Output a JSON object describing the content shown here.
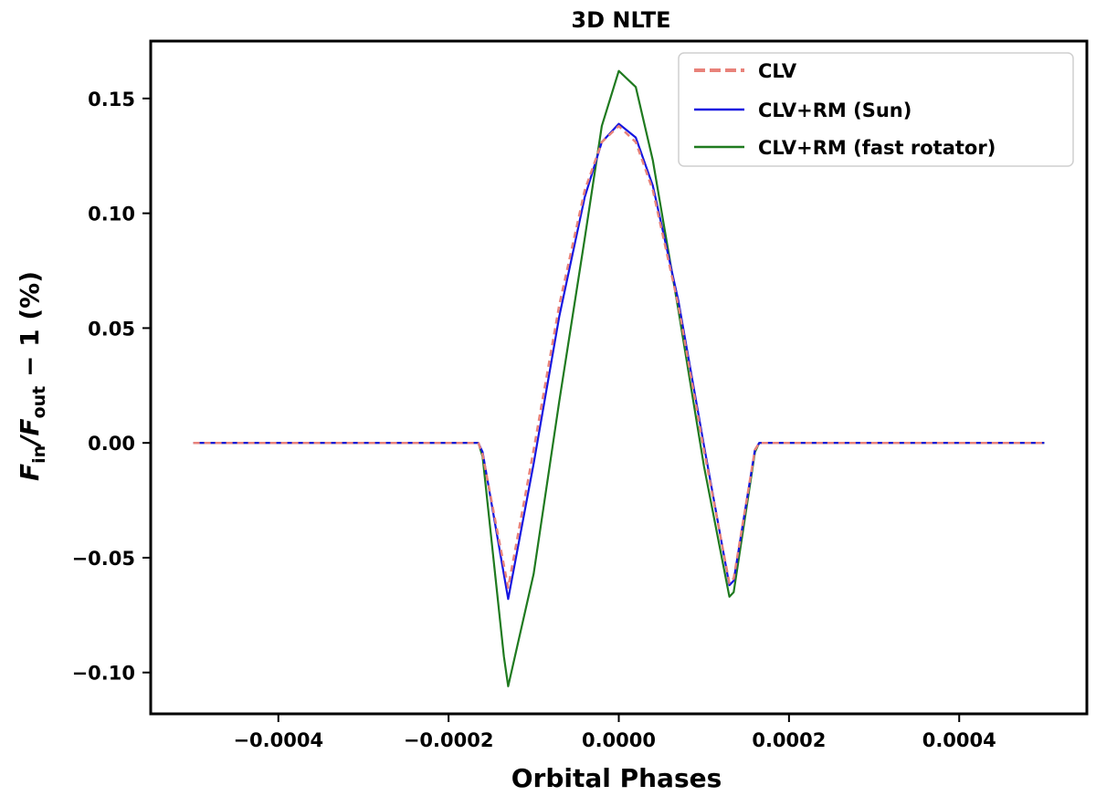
{
  "chart_data": {
    "type": "line",
    "title": "3D NLTE",
    "xlabel": "Orbital Phases",
    "ylabel_parts": {
      "f1": "F",
      "sub1": "in",
      "slash": "/",
      "f2": "F",
      "sub2": "out",
      "rest": " − 1 (%)"
    },
    "xlim": [
      -0.00055,
      0.00055
    ],
    "ylim": [
      -0.118,
      0.175
    ],
    "xticks": [
      -0.0004,
      -0.0002,
      0.0,
      0.0002,
      0.0004
    ],
    "xtick_labels": [
      "−0.0004",
      "−0.0002",
      "0.0000",
      "0.0002",
      "0.0004"
    ],
    "yticks": [
      -0.1,
      -0.05,
      0.0,
      0.05,
      0.1,
      0.15
    ],
    "ytick_labels": [
      "−0.10",
      "−0.05",
      "0.00",
      "0.05",
      "0.10",
      "0.15"
    ],
    "legend_position": "top-right",
    "series": [
      {
        "name": "CLV",
        "color": "#e8827a",
        "style": "dashed",
        "x": [
          -0.0005,
          -0.000165,
          -0.00016,
          -0.00013,
          -0.0001,
          -7e-05,
          -4e-05,
          -2e-05,
          0.0,
          2e-05,
          4e-05,
          7e-05,
          0.0001,
          0.00013,
          0.000135,
          0.00016,
          0.000165,
          0.0005
        ],
        "y": [
          0.0,
          0.0,
          -0.005,
          -0.063,
          -0.003,
          0.06,
          0.11,
          0.131,
          0.138,
          0.131,
          0.11,
          0.06,
          -0.003,
          -0.061,
          -0.059,
          -0.003,
          0.0,
          0.0
        ]
      },
      {
        "name": "CLV+RM (Sun)",
        "color": "#1515e0",
        "style": "solid",
        "x": [
          -0.0005,
          -0.000165,
          -0.00016,
          -0.00013,
          -0.0001,
          -7e-05,
          -4e-05,
          -2e-05,
          0.0,
          2e-05,
          4e-05,
          7e-05,
          0.0001,
          0.00013,
          0.000135,
          0.00016,
          0.000165,
          0.0005
        ],
        "y": [
          0.0,
          0.0,
          -0.004,
          -0.068,
          -0.009,
          0.055,
          0.107,
          0.131,
          0.139,
          0.133,
          0.112,
          0.062,
          -0.001,
          -0.062,
          -0.06,
          -0.003,
          0.0,
          0.0
        ]
      },
      {
        "name": "CLV+RM (fast rotator)",
        "color": "#1f7a1f",
        "style": "solid",
        "x": [
          -0.0005,
          -0.000165,
          -0.00016,
          -0.000135,
          -0.00013,
          -0.0001,
          -7e-05,
          -4e-05,
          -2e-05,
          0.0,
          2e-05,
          4e-05,
          7e-05,
          0.0001,
          0.00013,
          0.000135,
          0.00016,
          0.000165,
          0.0005
        ],
        "y": [
          0.0,
          0.0,
          -0.006,
          -0.093,
          -0.106,
          -0.057,
          0.018,
          0.089,
          0.138,
          0.162,
          0.155,
          0.123,
          0.058,
          -0.01,
          -0.067,
          -0.065,
          -0.004,
          0.0,
          0.0
        ]
      }
    ]
  }
}
